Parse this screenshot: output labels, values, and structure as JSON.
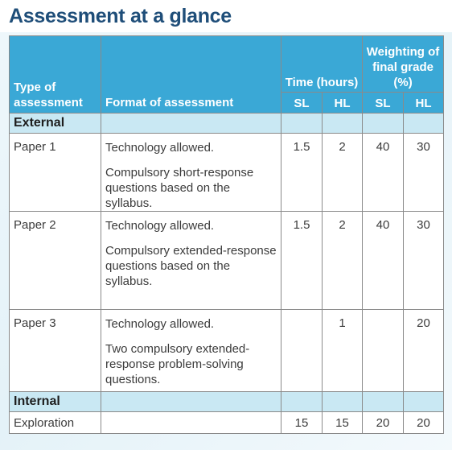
{
  "title": "Assessment at a glance",
  "table": {
    "headers": {
      "type": "Type of assessment",
      "format": "Format of assessment",
      "time": "Time (hours)",
      "weighting": "Weighting of final grade (%)",
      "time_sl": "SL",
      "time_hl": "HL",
      "weight_sl": "SL",
      "weight_hl": "HL"
    },
    "sections": {
      "external": "External",
      "internal": "Internal"
    },
    "rows": [
      {
        "type": "Paper 1",
        "format": [
          "Technology allowed.",
          "Compulsory short-response questions based on the syllabus."
        ],
        "time_sl": "1.5",
        "time_hl": "2",
        "weight_sl": "40",
        "weight_hl": "30"
      },
      {
        "type": "Paper 2",
        "format": [
          "Technology allowed.",
          "Compulsory extended-response questions based on the syllabus."
        ],
        "time_sl": "1.5",
        "time_hl": "2",
        "weight_sl": "40",
        "weight_hl": "30"
      },
      {
        "type": "Paper 3",
        "format": [
          "Technology allowed.",
          "Two compulsory extended-response problem-solving questions."
        ],
        "time_sl": "",
        "time_hl": "1",
        "weight_sl": "",
        "weight_hl": "20"
      },
      {
        "type": "Exploration",
        "format": [],
        "time_sl": "15",
        "time_hl": "15",
        "weight_sl": "20",
        "weight_hl": "20"
      }
    ]
  },
  "colors": {
    "title": "#1f4e79",
    "header_bg": "#3aa8d6",
    "section_bg": "#c9e8f3",
    "grid_line": "#8a8a8a"
  }
}
